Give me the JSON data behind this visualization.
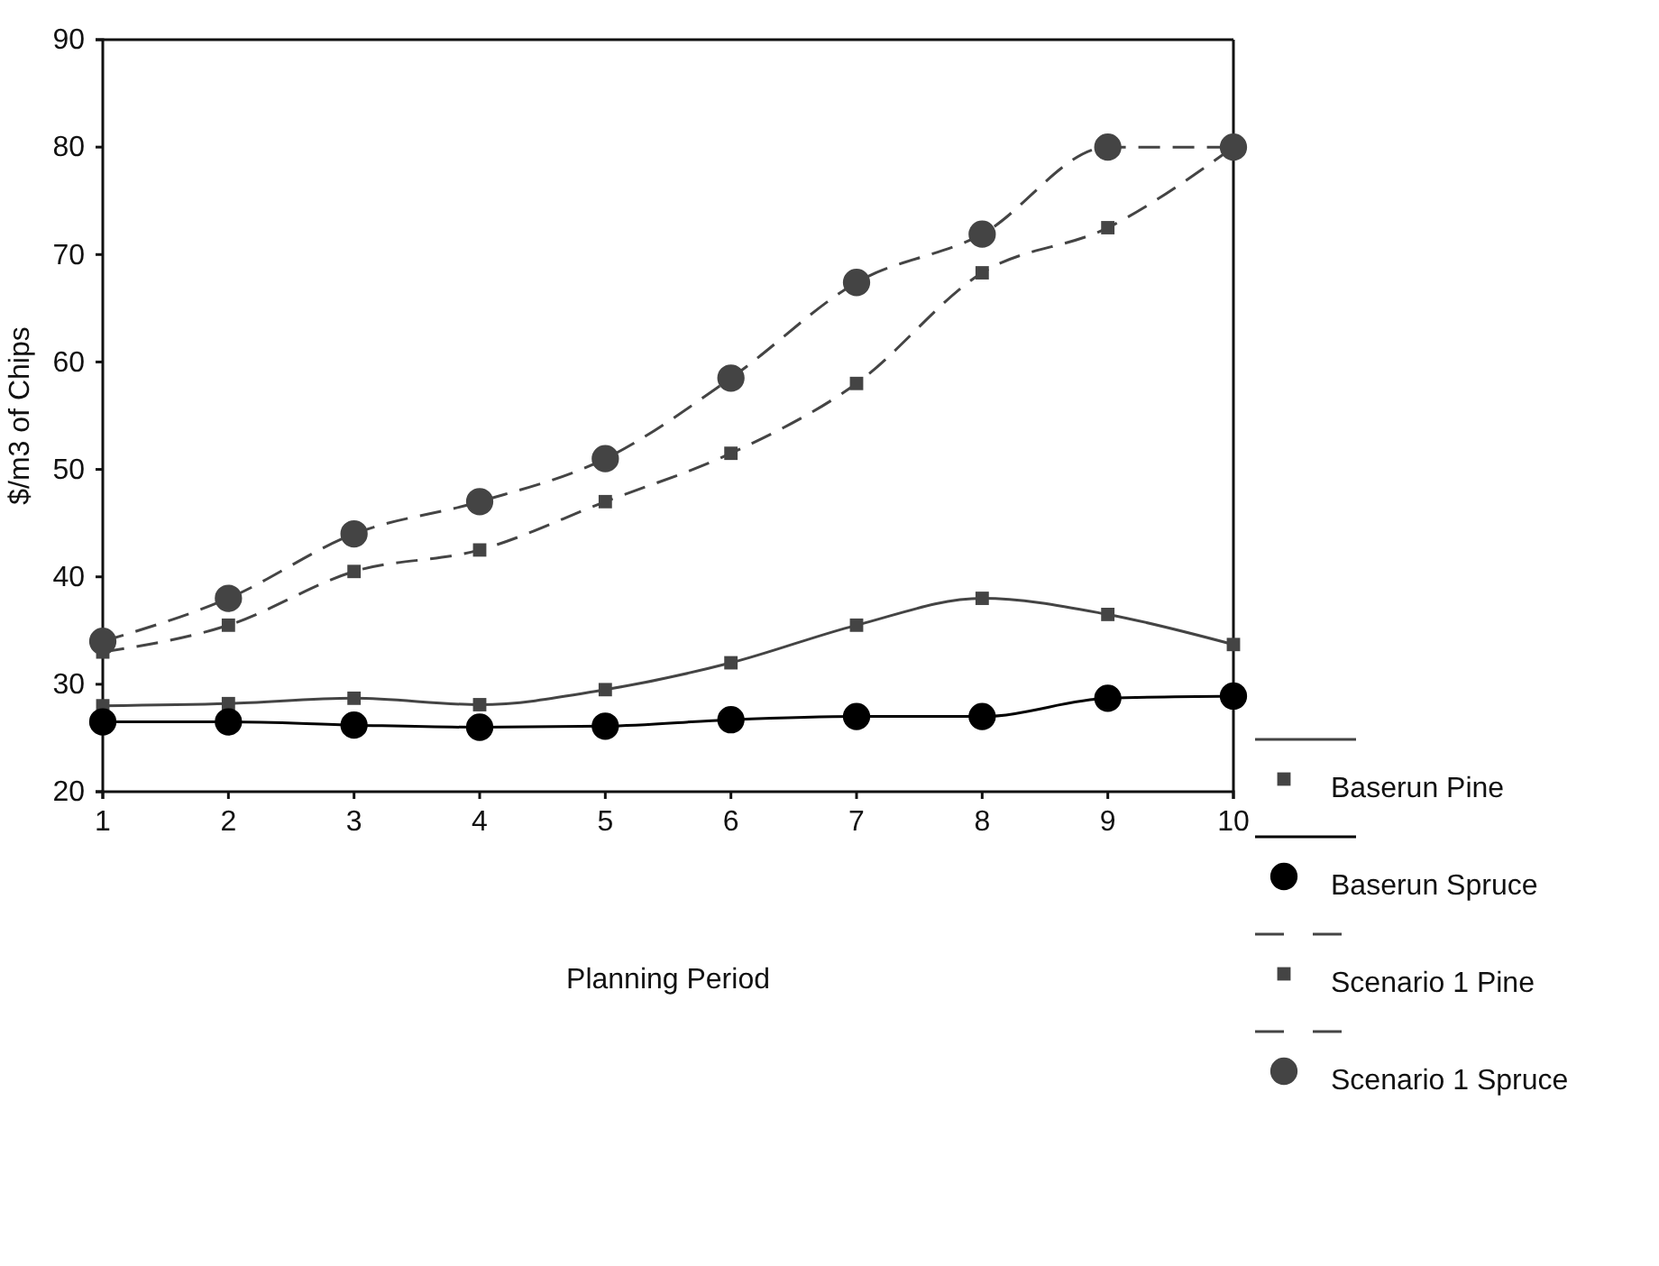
{
  "chart_data": {
    "type": "line",
    "xlabel": "Planning Period",
    "ylabel": "$/m3 of Chips",
    "x": [
      1,
      2,
      3,
      4,
      5,
      6,
      7,
      8,
      9,
      10
    ],
    "xlim": [
      1,
      10
    ],
    "xticks": [
      1,
      2,
      3,
      4,
      5,
      6,
      7,
      8,
      9,
      10
    ],
    "ylim": [
      20,
      90
    ],
    "yticks": [
      20,
      30,
      40,
      50,
      60,
      70,
      80,
      90
    ],
    "grid": false,
    "legend": "bottom right",
    "series": [
      {
        "name": "Baserun Pine",
        "color": "#444444",
        "marker": "square",
        "line_style": "solid",
        "values": [
          28,
          28.2,
          28.7,
          28.1,
          29.5,
          32,
          35.5,
          38,
          36.5,
          33.7
        ]
      },
      {
        "name": "Baserun Spruce",
        "color": "#000000",
        "marker": "circle",
        "line_style": "solid",
        "values": [
          26.5,
          26.5,
          26.2,
          26,
          26.1,
          26.7,
          27,
          27,
          28.7,
          28.9
        ]
      },
      {
        "name": "Scenario 1 Pine",
        "color": "#444444",
        "marker": "square",
        "line_style": "dashed",
        "values": [
          33,
          35.5,
          40.5,
          42.5,
          47,
          51.5,
          58,
          68.3,
          72.5,
          80
        ]
      },
      {
        "name": "Scenario 1 Spruce",
        "color": "#444444",
        "marker": "circle",
        "line_style": "dashed",
        "values": [
          34,
          38,
          44,
          47,
          51,
          58.5,
          67.4,
          71.9,
          80,
          80
        ]
      }
    ]
  }
}
